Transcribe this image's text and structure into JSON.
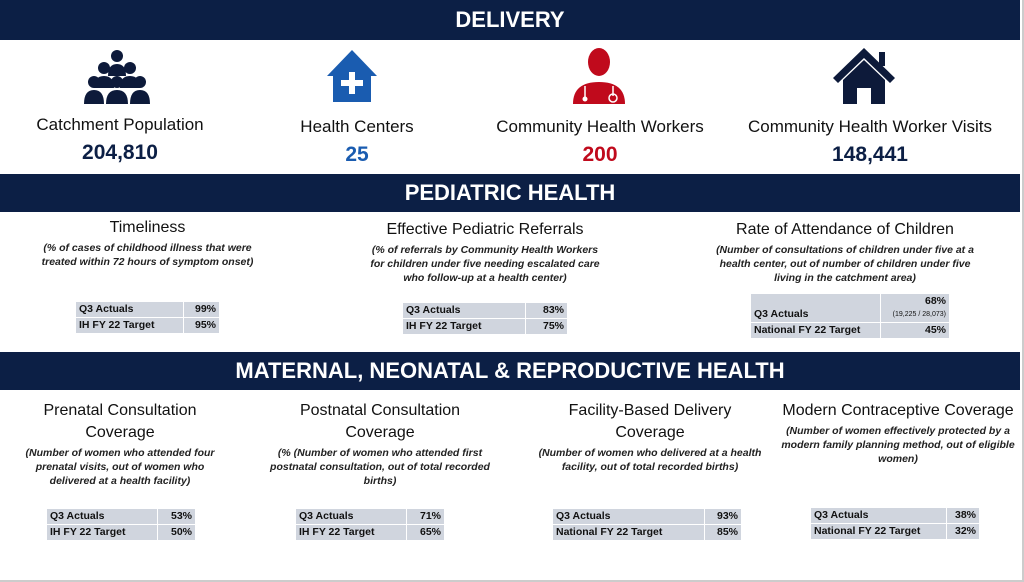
{
  "sections": {
    "delivery": "DELIVERY",
    "pediatric": "PEDIATRIC HEALTH",
    "maternal": "MATERNAL, NEONATAL & REPRODUCTIVE HEALTH"
  },
  "colors": {
    "navy": "#0c1f45",
    "blue": "#1a5cb0",
    "red": "#c00a1c"
  },
  "delivery": [
    {
      "icon": "people-group-icon",
      "label": "Catchment Population",
      "value": "204,810"
    },
    {
      "icon": "health-center-icon",
      "label": "Health Centers",
      "value": "25"
    },
    {
      "icon": "doctor-icon",
      "label": "Community Health Workers",
      "value": "200"
    },
    {
      "icon": "house-icon",
      "label": "Community Health Worker Visits",
      "value": "148,441"
    }
  ],
  "pediatric": [
    {
      "title": "Timeliness",
      "desc": "(% of cases of childhood illness that were treated within 72 hours of symptom onset)",
      "rows": [
        [
          "Q3 Actuals",
          "99%"
        ],
        [
          "IH FY 22 Target",
          "95%"
        ]
      ]
    },
    {
      "title": "Effective Pediatric Referrals",
      "desc": "(% of referrals by Community Health Workers for children under five needing escalated care who follow-up at a health center)",
      "rows": [
        [
          "Q3 Actuals",
          "83%"
        ],
        [
          "IH FY 22 Target",
          "75%"
        ]
      ]
    },
    {
      "title": "Rate of Attendance of Children",
      "desc": "(Number of consultations of children under five at a health center, out of number of children under five living in the catchment area)",
      "rows": [
        [
          "Q3 Actuals",
          "68%"
        ],
        [
          "National FY 22 Target",
          "45%"
        ]
      ],
      "detail": "(19,225 / 28,073)"
    }
  ],
  "maternal": [
    {
      "title": "Prenatal Consultation Coverage",
      "desc": "(Number of women who attended four prenatal visits, out of women who delivered at a health facility)",
      "rows": [
        [
          "Q3 Actuals",
          "53%"
        ],
        [
          "IH FY 22 Target",
          "50%"
        ]
      ]
    },
    {
      "title": "Postnatal Consultation Coverage",
      "desc": "(% (Number of women who attended first postnatal consultation, out of total recorded births)",
      "rows": [
        [
          "Q3 Actuals",
          "71%"
        ],
        [
          "IH FY 22 Target",
          "65%"
        ]
      ]
    },
    {
      "title": "Facility-Based Delivery Coverage",
      "desc": "(Number of women who delivered at a health facility, out of total recorded births)",
      "rows": [
        [
          "Q3 Actuals",
          "93%"
        ],
        [
          "National FY 22 Target",
          "85%"
        ]
      ]
    },
    {
      "title": "Modern Contraceptive Coverage",
      "desc": "(Number of women effectively protected by a modern family planning method, out of eligible women)",
      "rows": [
        [
          "Q3 Actuals",
          "38%"
        ],
        [
          "National FY 22 Target",
          "32%"
        ]
      ]
    }
  ]
}
